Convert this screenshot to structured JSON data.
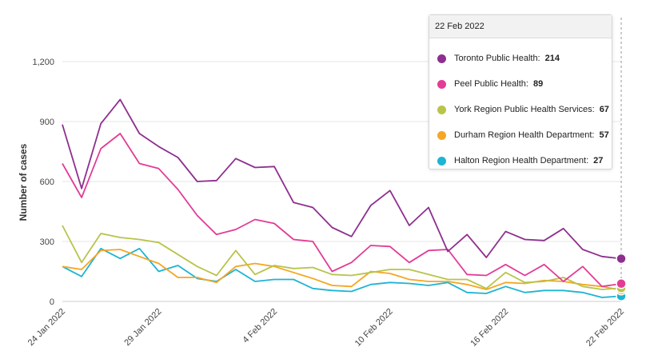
{
  "chart_data": {
    "type": "line",
    "title": "",
    "ylabel": "Number of cases",
    "xlabel": "",
    "ylim": [
      0,
      1200
    ],
    "yticks": [
      0,
      300,
      600,
      900,
      1200
    ],
    "ytick_labels": [
      "0",
      "300",
      "600",
      "900",
      "1,200"
    ],
    "x": [
      "2022-01-24",
      "2022-01-25",
      "2022-01-26",
      "2022-01-27",
      "2022-01-28",
      "2022-01-29",
      "2022-01-30",
      "2022-01-31",
      "2022-02-01",
      "2022-02-02",
      "2022-02-03",
      "2022-02-04",
      "2022-02-05",
      "2022-02-06",
      "2022-02-07",
      "2022-02-08",
      "2022-02-09",
      "2022-02-10",
      "2022-02-11",
      "2022-02-12",
      "2022-02-13",
      "2022-02-14",
      "2022-02-15",
      "2022-02-16",
      "2022-02-17",
      "2022-02-18",
      "2022-02-19",
      "2022-02-20",
      "2022-02-21",
      "2022-02-22"
    ],
    "xticks": [
      {
        "index": 0,
        "label": "24 Jan 2022"
      },
      {
        "index": 5,
        "label": "29 Jan 2022"
      },
      {
        "index": 11,
        "label": "4 Feb 2022"
      },
      {
        "index": 17,
        "label": "10 Feb 2022"
      },
      {
        "index": 23,
        "label": "16 Feb 2022"
      },
      {
        "index": 29,
        "label": "22 Feb 2022"
      }
    ],
    "grid": true,
    "series": [
      {
        "name": "Toronto Public Health",
        "color": "#8e2f8e",
        "values": [
          885,
          565,
          890,
          1010,
          840,
          775,
          720,
          600,
          605,
          715,
          670,
          675,
          495,
          470,
          370,
          325,
          480,
          555,
          380,
          470,
          250,
          335,
          220,
          350,
          310,
          305,
          365,
          260,
          225,
          214
        ]
      },
      {
        "name": "Peel Public Health",
        "color": "#e23c96",
        "values": [
          690,
          520,
          765,
          840,
          690,
          665,
          560,
          430,
          335,
          360,
          410,
          390,
          310,
          300,
          150,
          195,
          280,
          275,
          195,
          255,
          260,
          135,
          130,
          185,
          130,
          185,
          100,
          175,
          75,
          89
        ]
      },
      {
        "name": "York Region Public Health Services",
        "color": "#b8c44a",
        "values": [
          380,
          195,
          340,
          320,
          310,
          295,
          235,
          175,
          130,
          255,
          135,
          180,
          165,
          170,
          135,
          130,
          145,
          160,
          160,
          135,
          110,
          110,
          65,
          145,
          95,
          100,
          120,
          75,
          60,
          67
        ]
      },
      {
        "name": "Durham Region Health Department",
        "color": "#f5a623",
        "values": [
          175,
          160,
          255,
          260,
          225,
          190,
          120,
          120,
          95,
          175,
          190,
          175,
          145,
          115,
          80,
          75,
          150,
          140,
          110,
          100,
          100,
          85,
          60,
          95,
          90,
          105,
          100,
          85,
          75,
          57
        ]
      },
      {
        "name": "Halton Region Health Department",
        "color": "#1eb4d4",
        "values": [
          175,
          125,
          265,
          215,
          265,
          150,
          180,
          115,
          100,
          160,
          100,
          110,
          110,
          65,
          55,
          50,
          85,
          95,
          90,
          80,
          95,
          45,
          40,
          75,
          45,
          55,
          55,
          45,
          20,
          27
        ]
      }
    ]
  },
  "tooltip": {
    "date": "22 Feb 2022",
    "rows": [
      {
        "name": "Toronto Public Health:",
        "value": "214",
        "color": "#8e2f8e"
      },
      {
        "name": "Peel Public Health:",
        "value": "89",
        "color": "#e23c96"
      },
      {
        "name": "York Region Public Health Services:",
        "value": "67",
        "color": "#b8c44a"
      },
      {
        "name": "Durham Region Health Department:",
        "value": "57",
        "color": "#f5a623"
      },
      {
        "name": "Halton Region Health Department:",
        "value": "27",
        "color": "#1eb4d4"
      }
    ]
  }
}
